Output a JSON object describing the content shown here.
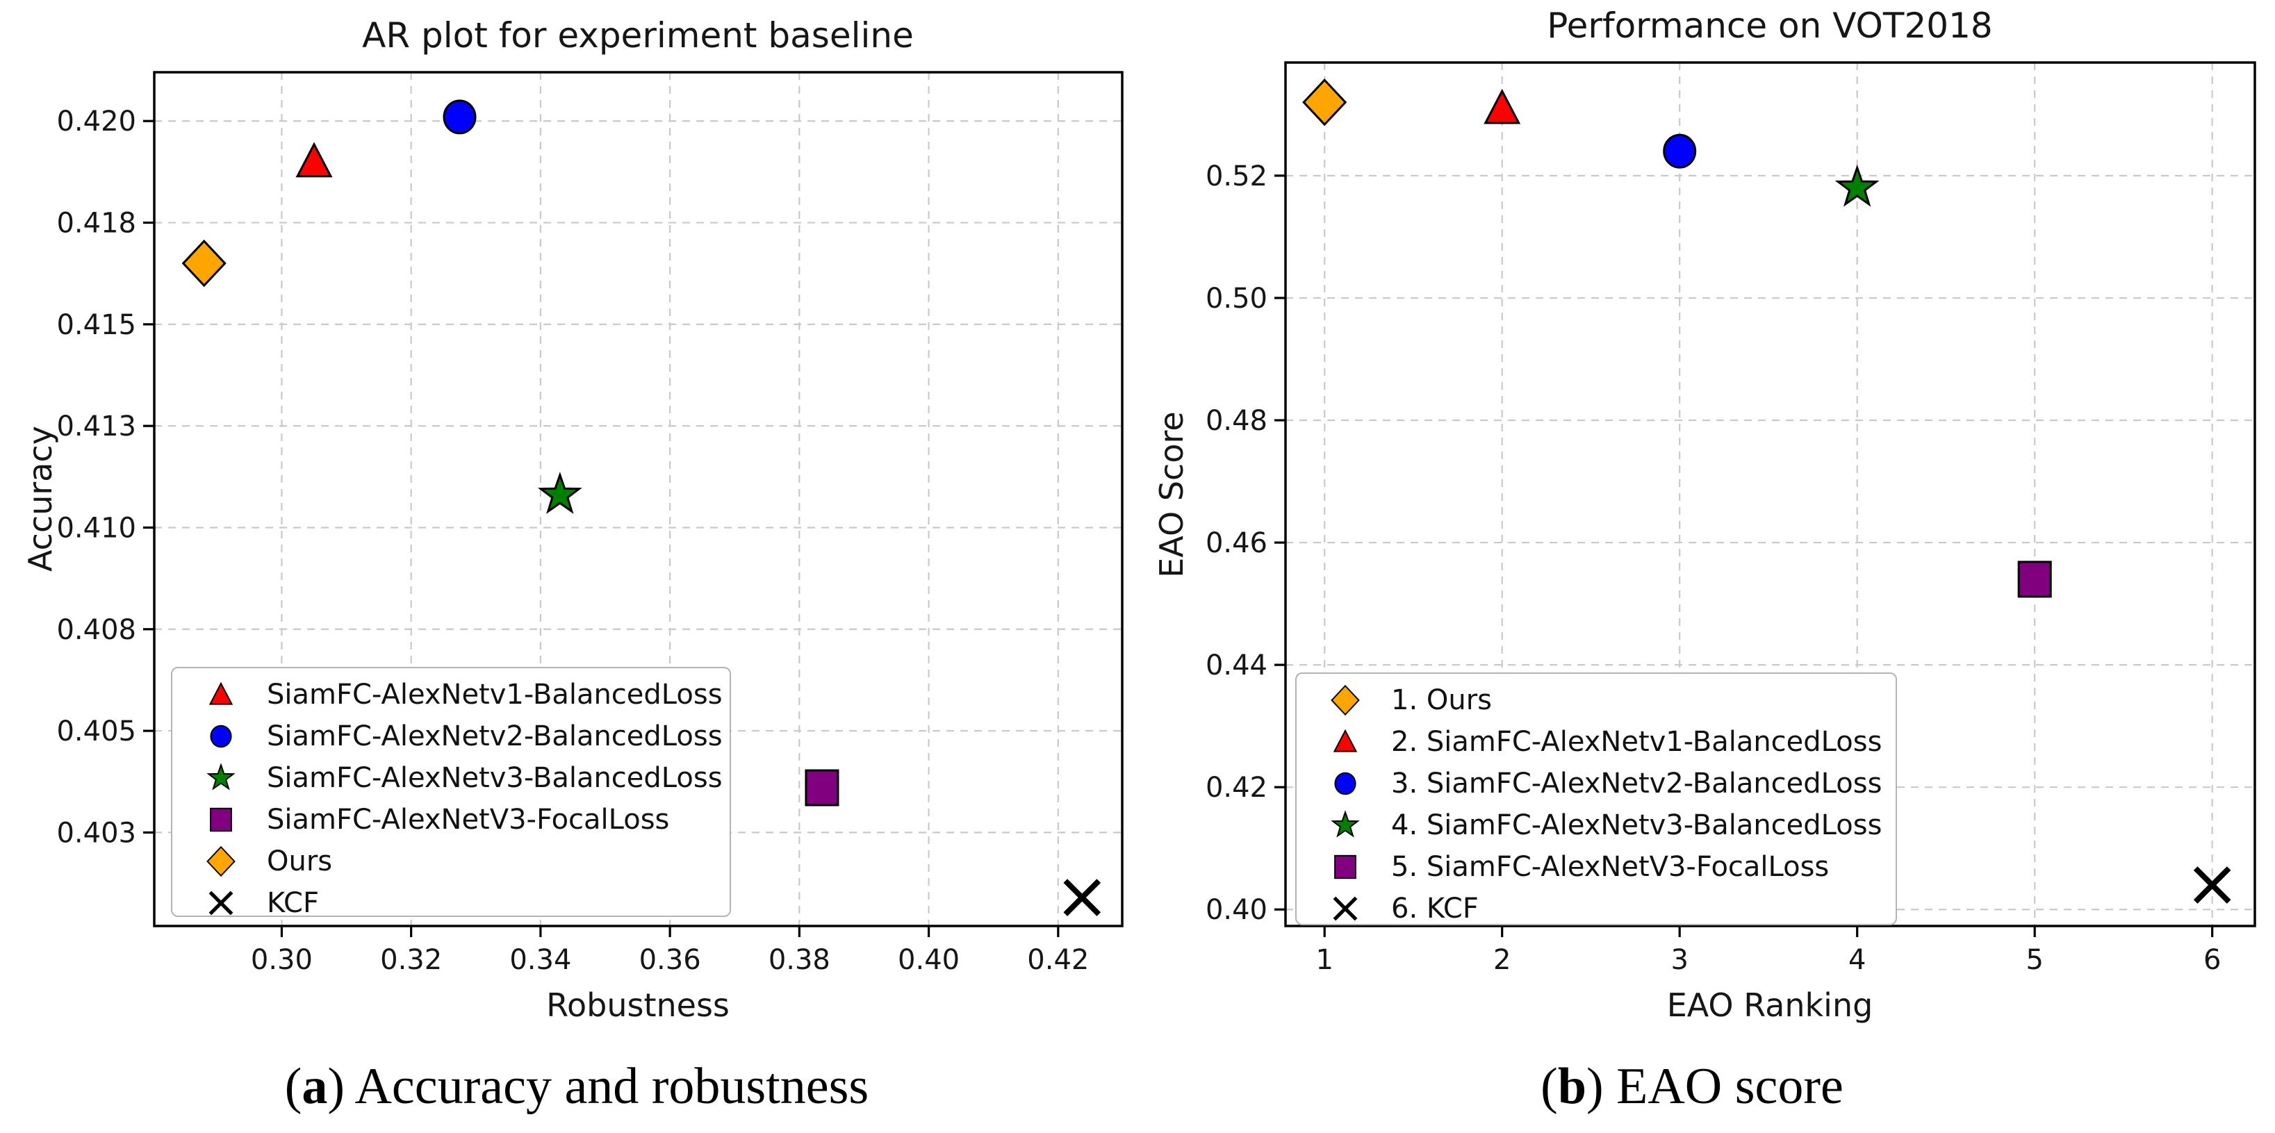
{
  "figure": {
    "captions": {
      "a": {
        "open": "(",
        "letter": "a",
        "close": ") ",
        "text": "Accuracy and robustness"
      },
      "b": {
        "open": "(",
        "letter": "b",
        "close": ") ",
        "text": "EAO score"
      }
    }
  },
  "chart_data": [
    {
      "id": "ar-plot",
      "type": "scatter",
      "title": "AR plot for experiment baseline",
      "xlabel": "Robustness",
      "ylabel": "Accuracy",
      "xlim": [
        0.2803,
        0.4299
      ],
      "ylim": [
        0.4002,
        0.4212
      ],
      "grid": true,
      "legend_loc": "lower left",
      "xtick_values": [
        0.3,
        0.32,
        0.34,
        0.36,
        0.38,
        0.4,
        0.42
      ],
      "xtick_labels": [
        "0.30",
        "0.32",
        "0.34",
        "0.36",
        "0.38",
        "0.40",
        "0.42"
      ],
      "ytick_values": [
        0.4025,
        0.405,
        0.4075,
        0.41,
        0.4125,
        0.415,
        0.4175,
        0.42
      ],
      "ytick_labels": [
        "0.403",
        "0.405",
        "0.408",
        "0.410",
        "0.413",
        "0.415",
        "0.418",
        "0.420"
      ],
      "series": [
        {
          "label": "SiamFC-AlexNetv1-BalancedLoss",
          "marker": "triangle",
          "color": "#ff0000",
          "x": 0.305,
          "y": 0.419
        },
        {
          "label": "SiamFC-AlexNetv2-BalancedLoss",
          "marker": "circle",
          "color": "#0000ff",
          "x": 0.3275,
          "y": 0.4201
        },
        {
          "label": "SiamFC-AlexNetv3-BalancedLoss",
          "marker": "star",
          "color": "#008000",
          "x": 0.343,
          "y": 0.4108
        },
        {
          "label": "SiamFC-AlexNetV3-FocalLoss",
          "marker": "square",
          "color": "#800080",
          "x": 0.3835,
          "y": 0.4036
        },
        {
          "label": "Ours",
          "marker": "diamond",
          "color": "#ffa500",
          "x": 0.288,
          "y": 0.4165
        },
        {
          "label": "KCF",
          "marker": "x",
          "color": "#000000",
          "x": 0.4237,
          "y": 0.4009
        }
      ]
    },
    {
      "id": "eao-plot",
      "type": "scatter",
      "title": "Performance on VOT2018",
      "xlabel": "EAO Ranking",
      "ylabel": "EAO Score",
      "xlim": [
        0.78,
        6.24
      ],
      "ylim": [
        0.3973,
        0.5385
      ],
      "grid": true,
      "legend_loc": "lower left",
      "xtick_values": [
        1,
        2,
        3,
        4,
        5,
        6
      ],
      "xtick_labels": [
        "1",
        "2",
        "3",
        "4",
        "5",
        "6"
      ],
      "ytick_values": [
        0.4,
        0.42,
        0.44,
        0.46,
        0.48,
        0.5,
        0.52
      ],
      "ytick_labels": [
        "0.40",
        "0.42",
        "0.44",
        "0.46",
        "0.48",
        "0.50",
        "0.52"
      ],
      "series": [
        {
          "label": "1. Ours",
          "marker": "diamond",
          "color": "#ffa500",
          "x": 1,
          "y": 0.532
        },
        {
          "label": "2. SiamFC-AlexNetv1-BalancedLoss",
          "marker": "triangle",
          "color": "#ff0000",
          "x": 2,
          "y": 0.531
        },
        {
          "label": "3. SiamFC-AlexNetv2-BalancedLoss",
          "marker": "circle",
          "color": "#0000ff",
          "x": 3,
          "y": 0.524
        },
        {
          "label": "4. SiamFC-AlexNetv3-BalancedLoss",
          "marker": "star",
          "color": "#008000",
          "x": 4,
          "y": 0.518
        },
        {
          "label": "5. SiamFC-AlexNetV3-FocalLoss",
          "marker": "square",
          "color": "#800080",
          "x": 5,
          "y": 0.454
        },
        {
          "label": "6. KCF",
          "marker": "x",
          "color": "#000000",
          "x": 6,
          "y": 0.404
        }
      ]
    }
  ]
}
